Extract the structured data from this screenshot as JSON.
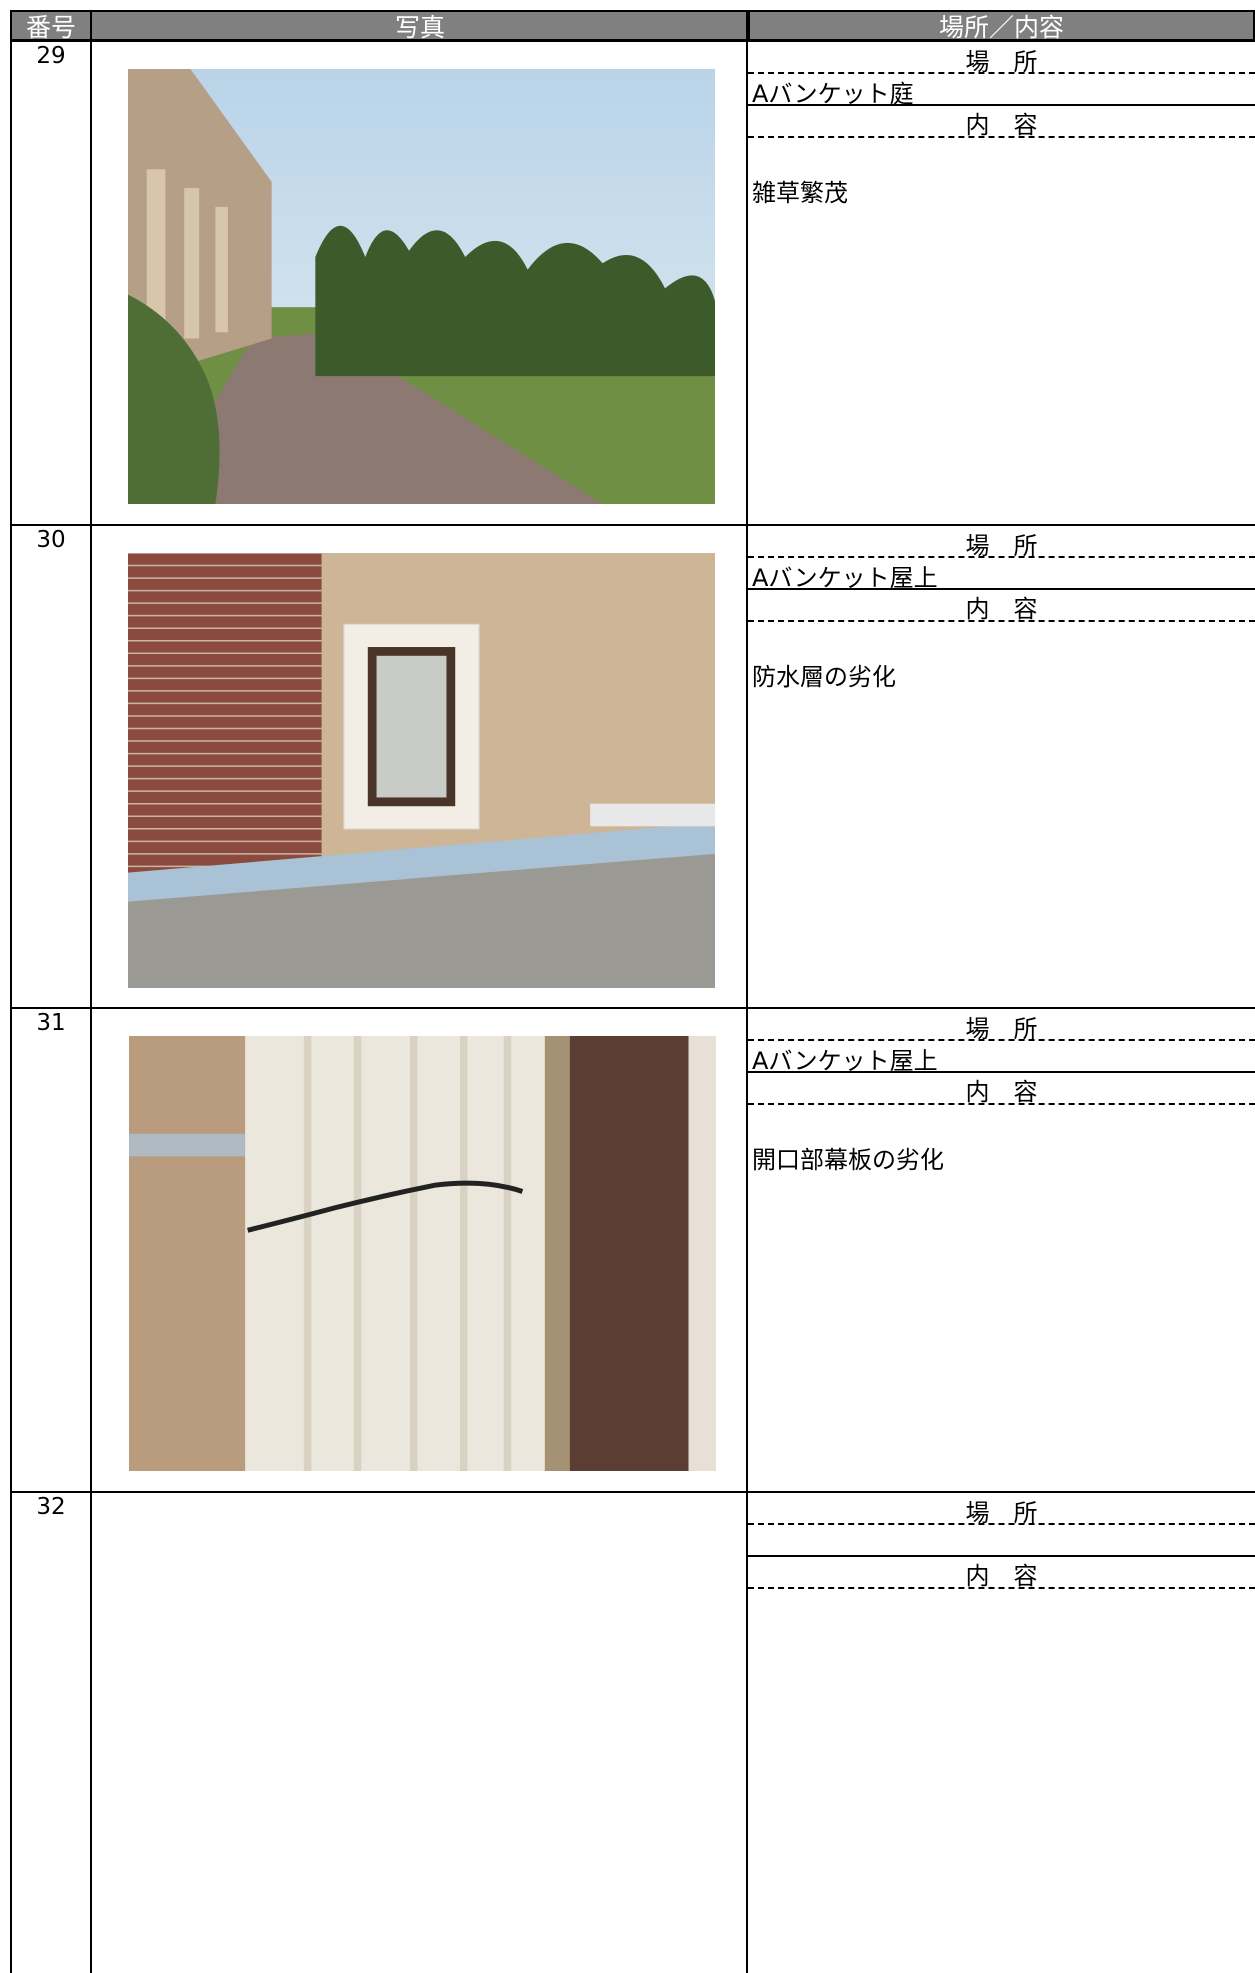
{
  "header": {
    "number": "番号",
    "photo": "写真",
    "place_content": "場所／内容"
  },
  "rows": [
    {
      "number": "29",
      "place_label": "場　所",
      "place": "Aバンケット庭",
      "content_label": "内　容",
      "content": "雑草繁茂"
    },
    {
      "number": "30",
      "place_label": "場　所",
      "place": "Aバンケット屋上",
      "content_label": "内　容",
      "content": "防水層の劣化"
    },
    {
      "number": "31",
      "place_label": "場　所",
      "place": "Aバンケット屋上",
      "content_label": "内　容",
      "content": "開口部幕板の劣化"
    },
    {
      "number": "32",
      "place_label": "場　所",
      "content_label": "内　容"
    }
  ]
}
